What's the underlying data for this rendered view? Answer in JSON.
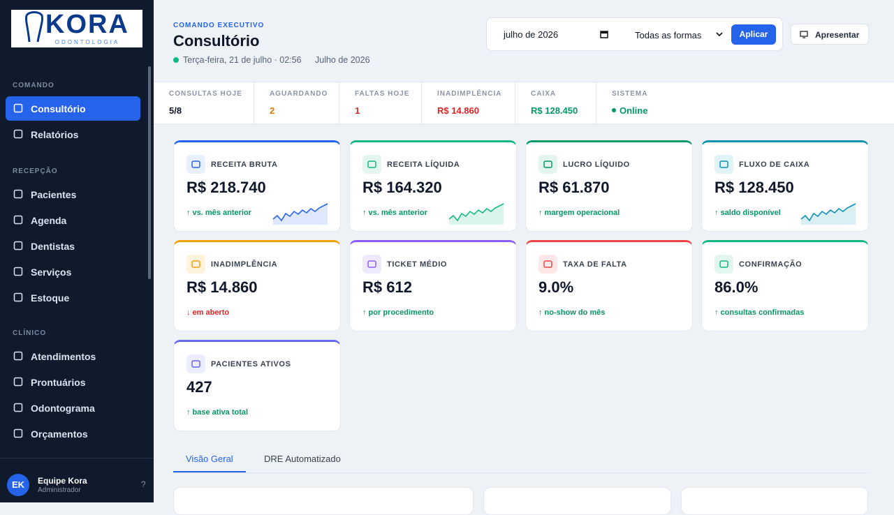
{
  "sidebar": {
    "logo": {
      "brand": "KORA",
      "tagline": "ODONTOLOGIA"
    },
    "sections": [
      {
        "title": "COMANDO",
        "items": [
          "Consultório",
          "Relatórios"
        ]
      },
      {
        "title": "RECEPÇÃO",
        "items": [
          "Pacientes",
          "Agenda",
          "Dentistas",
          "Serviços",
          "Estoque"
        ]
      },
      {
        "title": "CLÍNICO",
        "items": [
          "Atendimentos",
          "Prontuários",
          "Odontograma",
          "Orçamentos"
        ]
      }
    ],
    "user": {
      "initials": "EK",
      "name": "Equipe Kora",
      "role": "Administrador"
    },
    "help": "?"
  },
  "header": {
    "eyebrow": "COMANDO EXECUTIVO",
    "title": "Consultório",
    "datetime": "Terça-feira, 21 de julho · 02:56",
    "period": "Julho de 2026"
  },
  "controls": {
    "month": "julho de 2026",
    "payment_filter": "Todas as formas",
    "apply": "Aplicar",
    "present": "Apresentar"
  },
  "stats": [
    {
      "label": "CONSULTAS HOJE",
      "value": "5/8"
    },
    {
      "label": "AGUARDANDO",
      "value": "2"
    },
    {
      "label": "FALTAS HOJE",
      "value": "1"
    },
    {
      "label": "INADIMPLÊNCIA",
      "value": "R$ 14.860"
    },
    {
      "label": "CAIXA",
      "value": "R$ 128.450"
    },
    {
      "label": "SISTEMA",
      "value": "Online"
    }
  ],
  "kpis": [
    {
      "label": "RECEITA BRUTA",
      "value": "R$ 218.740",
      "note": "↑ vs. mês anterior"
    },
    {
      "label": "RECEITA LÍQUIDA",
      "value": "R$ 164.320",
      "note": "↑ vs. mês anterior"
    },
    {
      "label": "LUCRO LÍQUIDO",
      "value": "R$ 61.870",
      "note": "↑ margem operacional"
    },
    {
      "label": "FLUXO DE CAIXA",
      "value": "R$ 128.450",
      "note": "↑ saldo disponível"
    },
    {
      "label": "INADIMPLÊNCIA",
      "value": "R$ 14.860",
      "note": "↓ em aberto"
    },
    {
      "label": "TICKET MÉDIO",
      "value": "R$ 612",
      "note": "↑ por procedimento"
    },
    {
      "label": "TAXA DE FALTA",
      "value": "9.0%",
      "note": "↑ no-show do mês"
    },
    {
      "label": "CONFIRMAÇÃO",
      "value": "86.0%",
      "note": "↑ consultas confirmadas"
    },
    {
      "label": "PACIENTES ATIVOS",
      "value": "427",
      "note": "↑ base ativa total"
    }
  ],
  "tabs": [
    "Visão Geral",
    "DRE Automatizado"
  ]
}
